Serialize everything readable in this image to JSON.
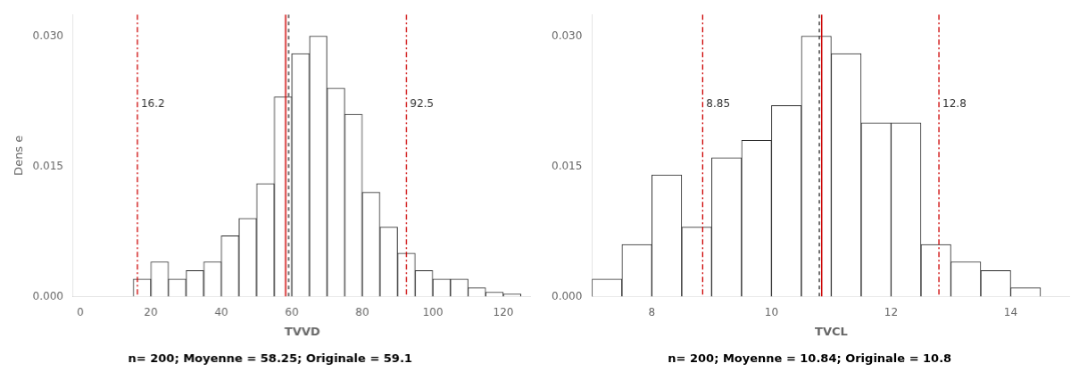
{
  "chart_data": [
    {
      "type": "histogram",
      "xlabel": "TVVD",
      "ylabel": "Dens e",
      "subtitle": "n= 200; Moyenne = 58.25; Originale = 59.1",
      "bins": [
        0,
        5,
        10,
        15,
        20,
        25,
        30,
        35,
        40,
        45,
        50,
        55,
        60,
        65,
        70,
        75,
        80,
        85,
        90,
        95,
        100,
        105,
        110,
        115,
        120,
        125
      ],
      "values": [
        0.0,
        0.0,
        0.0,
        0.002,
        0.004,
        0.002,
        0.003,
        0.004,
        0.007,
        0.009,
        0.013,
        0.023,
        0.028,
        0.03,
        0.024,
        0.021,
        0.012,
        0.008,
        0.005,
        0.003,
        0.002,
        0.002,
        0.001,
        0.0005,
        0.0003
      ],
      "color": "#2b2b2b",
      "xlim": [
        -2,
        128
      ],
      "ylim": [
        0,
        0.0325
      ],
      "xticks": [
        0,
        20,
        40,
        60,
        80,
        100,
        120
      ],
      "yticks": [
        {
          "value": 0,
          "label": "0.000"
        },
        0.015,
        {
          "value": 0.03,
          "label": "0.030"
        }
      ],
      "grid": false,
      "vlines": [
        {
          "value": 16.2,
          "label": "16.2",
          "color": "#cc0000",
          "line_style": "dashdot"
        },
        {
          "value": 92.5,
          "label": "92.5",
          "color": "#cc0000",
          "line_style": "dashdot"
        },
        {
          "value": 58.25,
          "color": "#cc0000",
          "line_style": "solid"
        },
        {
          "value": 59.1,
          "color": "#2b2b2b",
          "line_style": "dashed"
        }
      ]
    },
    {
      "type": "histogram",
      "xlabel": "TVCL",
      "subtitle": "n= 200; Moyenne = 10.84; Originale = 10.8",
      "bins": [
        7.0,
        7.5,
        8.0,
        8.5,
        9.0,
        9.5,
        10.0,
        10.5,
        11.0,
        11.5,
        12.0,
        12.5,
        13.0,
        13.5,
        14.0,
        14.5
      ],
      "values": [
        0.002,
        0.006,
        0.014,
        0.008,
        0.016,
        0.018,
        0.022,
        0.03,
        0.028,
        0.02,
        0.02,
        0.006,
        0.004,
        0.003,
        0.001
      ],
      "color": "#2b2b2b",
      "xlim": [
        7.0,
        15.0
      ],
      "ylim": [
        0,
        0.0325
      ],
      "xticks": [
        8,
        10,
        12,
        14
      ],
      "yticks": [
        {
          "value": 0,
          "label": "0.000"
        },
        0.015,
        {
          "value": 0.03,
          "label": "0.030"
        }
      ],
      "grid": false,
      "vlines": [
        {
          "value": 8.85,
          "label": "8.85",
          "color": "#cc0000",
          "line_style": "dashdot"
        },
        {
          "value": 12.8,
          "label": "12.8",
          "color": "#cc0000",
          "line_style": "dashdot"
        },
        {
          "value": 10.84,
          "color": "#cc0000",
          "line_style": "solid"
        },
        {
          "value": 10.8,
          "color": "#2b2b2b",
          "line_style": "dashed"
        }
      ]
    }
  ]
}
